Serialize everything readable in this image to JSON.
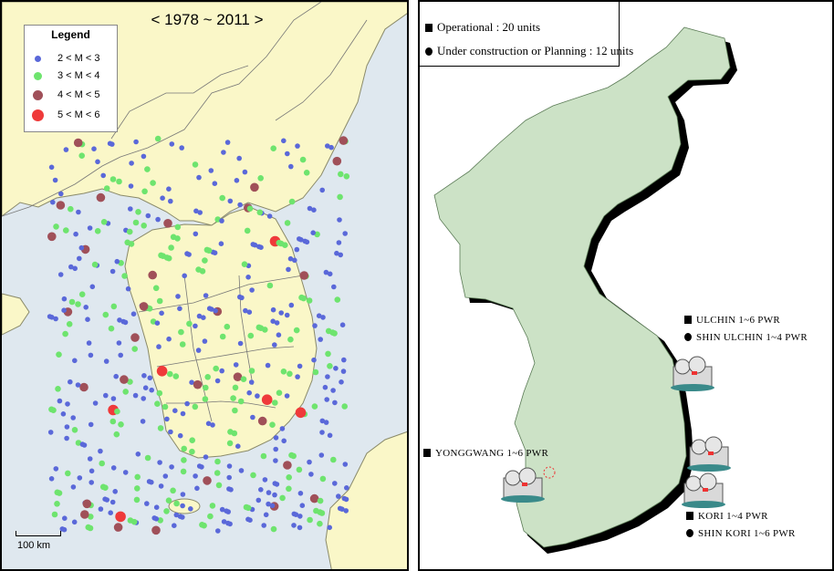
{
  "left_map": {
    "period": "< 1978 ~ 2011 >",
    "legend": {
      "title": "Legend",
      "items": [
        {
          "label": "2 < M < 3",
          "color": "#5a68d9"
        },
        {
          "label": "3 < M < 4",
          "color": "#6ee46e"
        },
        {
          "label": "4 < M < 5",
          "color": "#a05059"
        },
        {
          "label": "5 < M < 6",
          "color": "#ef3a3a"
        }
      ]
    },
    "scale_label": "100 km",
    "colors": {
      "sea": "#dfe8ef",
      "land": "#faf7c8",
      "border": "#777777"
    }
  },
  "right_map": {
    "legend": [
      {
        "marker": "square",
        "text": "Operational : 20 units"
      },
      {
        "marker": "circle",
        "text": "Under construction or Planning : 12 units"
      }
    ],
    "plants": [
      {
        "lines": [
          {
            "marker": "square",
            "text": "ULCHIN 1~6 PWR"
          },
          {
            "marker": "circle",
            "text": "SHIN ULCHIN 1~4 PWR"
          }
        ]
      },
      {
        "lines": [
          {
            "marker": "square",
            "text": "YONGGWANG 1~6 PWR"
          }
        ]
      },
      {
        "lines": [
          {
            "marker": "square",
            "text": "KORI 1~4 PWR"
          },
          {
            "marker": "circle",
            "text": "SHIN KORI 1~6 PWR"
          }
        ]
      }
    ],
    "colors": {
      "land": "#cce2c6",
      "shadow": "#000000"
    }
  }
}
